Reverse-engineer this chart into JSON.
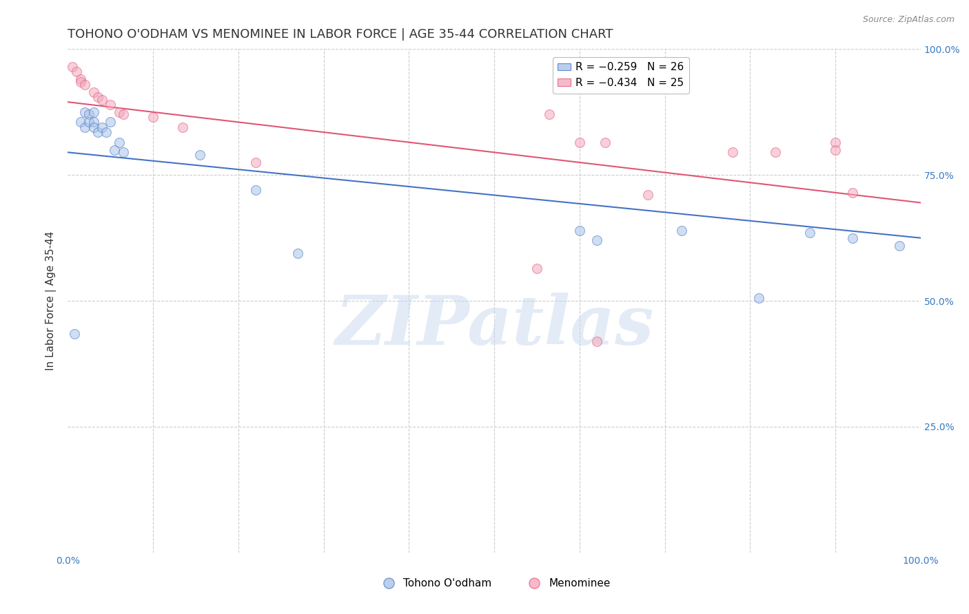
{
  "title": "TOHONO O'ODHAM VS MENOMINEE IN LABOR FORCE | AGE 35-44 CORRELATION CHART",
  "source": "Source: ZipAtlas.com",
  "ylabel": "In Labor Force | Age 35-44",
  "xlim": [
    0.0,
    1.0
  ],
  "ylim": [
    0.0,
    1.0
  ],
  "grid_color": "#cccccc",
  "background_color": "#ffffff",
  "legend_entries": [
    {
      "label": "R = −0.259   N = 26",
      "color": "#aac4e8"
    },
    {
      "label": "R = −0.434   N = 25",
      "color": "#f4a8bc"
    }
  ],
  "blue_scatter_x": [
    0.008,
    0.015,
    0.02,
    0.02,
    0.025,
    0.025,
    0.03,
    0.03,
    0.03,
    0.035,
    0.04,
    0.045,
    0.05,
    0.055,
    0.06,
    0.065,
    0.155,
    0.22,
    0.27,
    0.6,
    0.62,
    0.72,
    0.81,
    0.87,
    0.92,
    0.975
  ],
  "blue_scatter_y": [
    0.435,
    0.855,
    0.875,
    0.845,
    0.87,
    0.855,
    0.875,
    0.855,
    0.845,
    0.835,
    0.845,
    0.835,
    0.855,
    0.8,
    0.815,
    0.795,
    0.79,
    0.72,
    0.595,
    0.64,
    0.62,
    0.64,
    0.505,
    0.635,
    0.625,
    0.61
  ],
  "pink_scatter_x": [
    0.005,
    0.01,
    0.015,
    0.015,
    0.02,
    0.03,
    0.035,
    0.04,
    0.05,
    0.06,
    0.065,
    0.1,
    0.135,
    0.22,
    0.565,
    0.6,
    0.63,
    0.68,
    0.78,
    0.83,
    0.55,
    0.62,
    0.9,
    0.9,
    0.92
  ],
  "pink_scatter_y": [
    0.965,
    0.955,
    0.94,
    0.935,
    0.93,
    0.915,
    0.905,
    0.9,
    0.89,
    0.875,
    0.87,
    0.865,
    0.845,
    0.775,
    0.87,
    0.815,
    0.815,
    0.71,
    0.795,
    0.795,
    0.565,
    0.42,
    0.815,
    0.8,
    0.715
  ],
  "blue_line_y_start": 0.795,
  "blue_line_y_end": 0.625,
  "pink_line_y_start": 0.895,
  "pink_line_y_end": 0.695,
  "blue_fill_color": "#aac4e8",
  "blue_line_color": "#4472c4",
  "pink_fill_color": "#f4a8bc",
  "pink_line_color": "#e05575",
  "marker_size": 100,
  "marker_alpha": 0.55,
  "marker_lw": 0.8,
  "watermark_text": "ZIPatlas",
  "watermark_color": "#c8d8ee",
  "watermark_fontsize": 72,
  "watermark_alpha": 0.5,
  "title_fontsize": 13,
  "axis_label_fontsize": 11,
  "source_fontsize": 9,
  "tick_label_color": "#3a7abf",
  "tick_label_fontsize": 10,
  "bottom_legend_labels": [
    "Tohono O'odham",
    "Menominee"
  ]
}
